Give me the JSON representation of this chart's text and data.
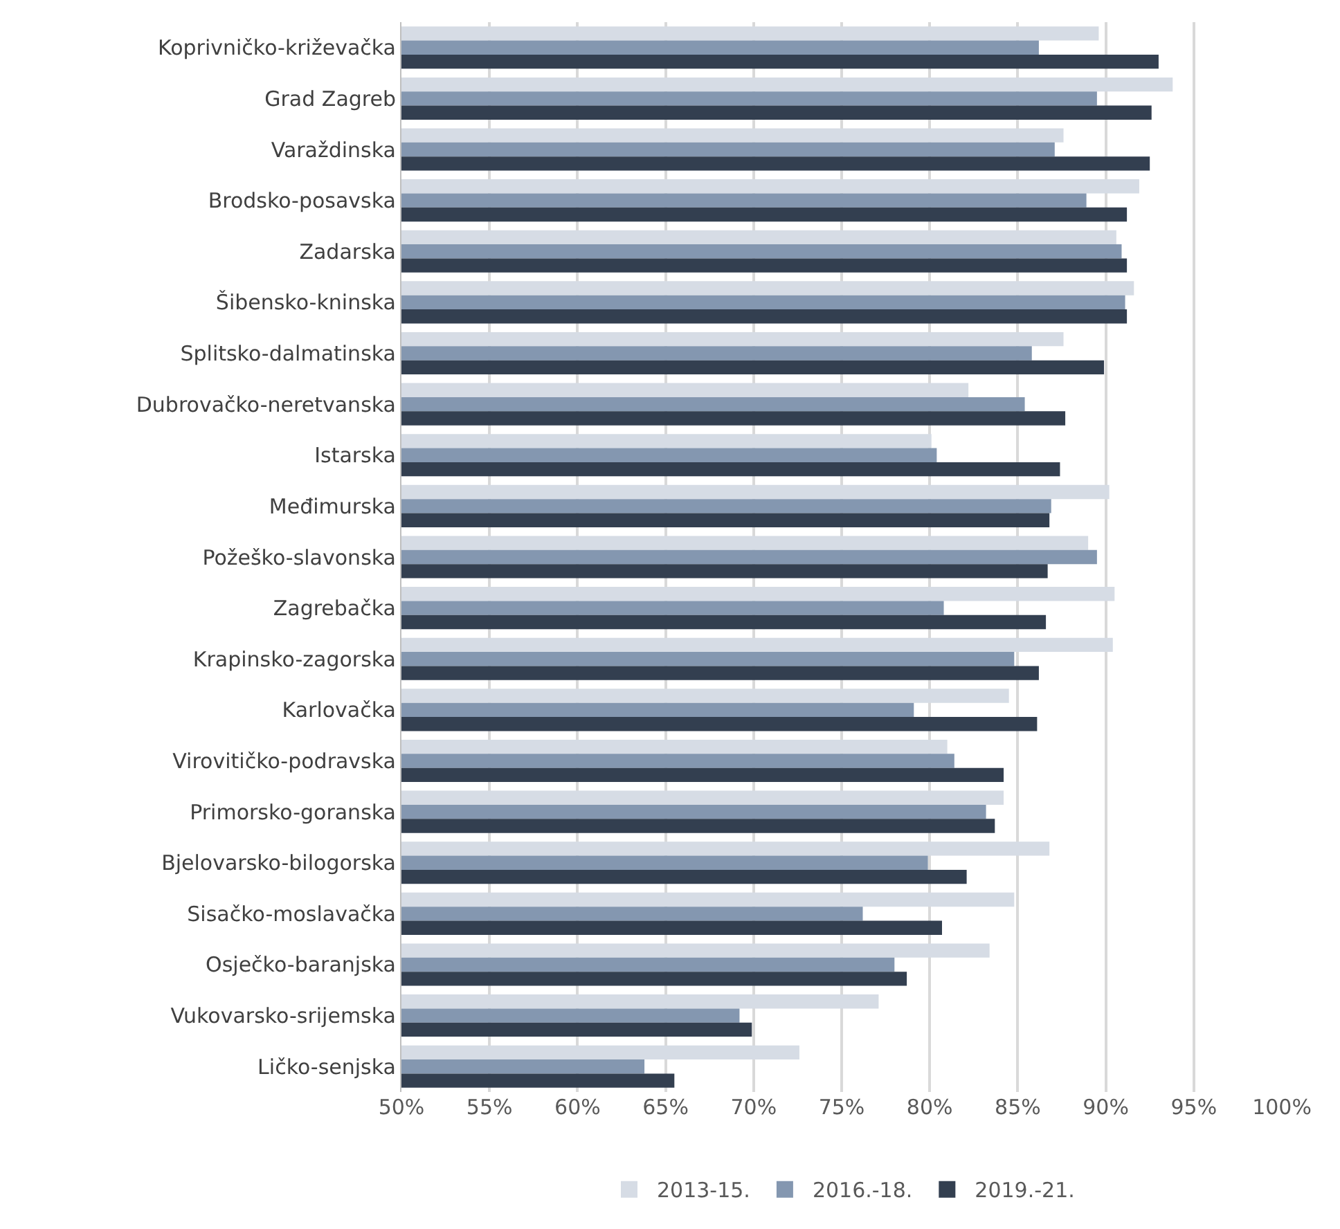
{
  "chart_data": {
    "type": "bar",
    "orientation": "horizontal",
    "categories": [
      "Koprivničko-križevačka",
      "Grad Zagreb",
      "Varaždinska",
      "Brodsko-posavska",
      "Zadarska",
      "Šibensko-kninska",
      "Splitsko-dalmatinska",
      "Dubrovačko-neretvanska",
      "Istarska",
      "Međimurska",
      "Požeško-slavonska",
      "Zagrebačka",
      "Krapinsko-zagorska",
      "Karlovačka",
      "Virovitičko-podravska",
      "Primorsko-goranska",
      "Bjelovarsko-bilogorska",
      "Sisačko-moslavačka",
      "Osječko-baranjska",
      "Vukovarsko-srijemska",
      "Ličko-senjska"
    ],
    "series": [
      {
        "name": "2013-15.",
        "color": "#d6dce5",
        "values": [
          89.6,
          93.8,
          87.6,
          91.9,
          90.6,
          91.6,
          87.6,
          82.2,
          80.1,
          90.2,
          89.0,
          90.5,
          90.4,
          84.5,
          81.0,
          84.2,
          86.8,
          84.8,
          83.4,
          77.1,
          72.6
        ]
      },
      {
        "name": "2016.-18.",
        "color": "#8497b0",
        "values": [
          86.2,
          89.5,
          87.1,
          88.9,
          90.9,
          91.1,
          85.8,
          85.4,
          80.4,
          86.9,
          89.5,
          80.8,
          84.8,
          79.1,
          81.4,
          83.2,
          79.9,
          76.2,
          78.0,
          69.2,
          63.8
        ]
      },
      {
        "name": "2019.-21.",
        "color": "#333f50",
        "values": [
          93.0,
          92.6,
          92.5,
          91.2,
          91.2,
          91.2,
          89.9,
          87.7,
          87.4,
          86.8,
          86.7,
          86.6,
          86.2,
          86.1,
          84.2,
          83.7,
          82.1,
          80.7,
          78.7,
          69.9,
          65.5
        ]
      }
    ],
    "xlim": [
      50,
      100
    ],
    "xticks": [
      {
        "value": 50,
        "label": "50%"
      },
      {
        "value": 55,
        "label": "55%"
      },
      {
        "value": 60,
        "label": "60%"
      },
      {
        "value": 65,
        "label": "65%"
      },
      {
        "value": 70,
        "label": "70%"
      },
      {
        "value": 75,
        "label": "75%"
      },
      {
        "value": 80,
        "label": "80%"
      },
      {
        "value": 85,
        "label": "85%"
      },
      {
        "value": 90,
        "label": "90%"
      },
      {
        "value": 95,
        "label": "95%"
      },
      {
        "value": 100,
        "label": "100%"
      }
    ],
    "grid": "x",
    "legend": "bottom"
  }
}
